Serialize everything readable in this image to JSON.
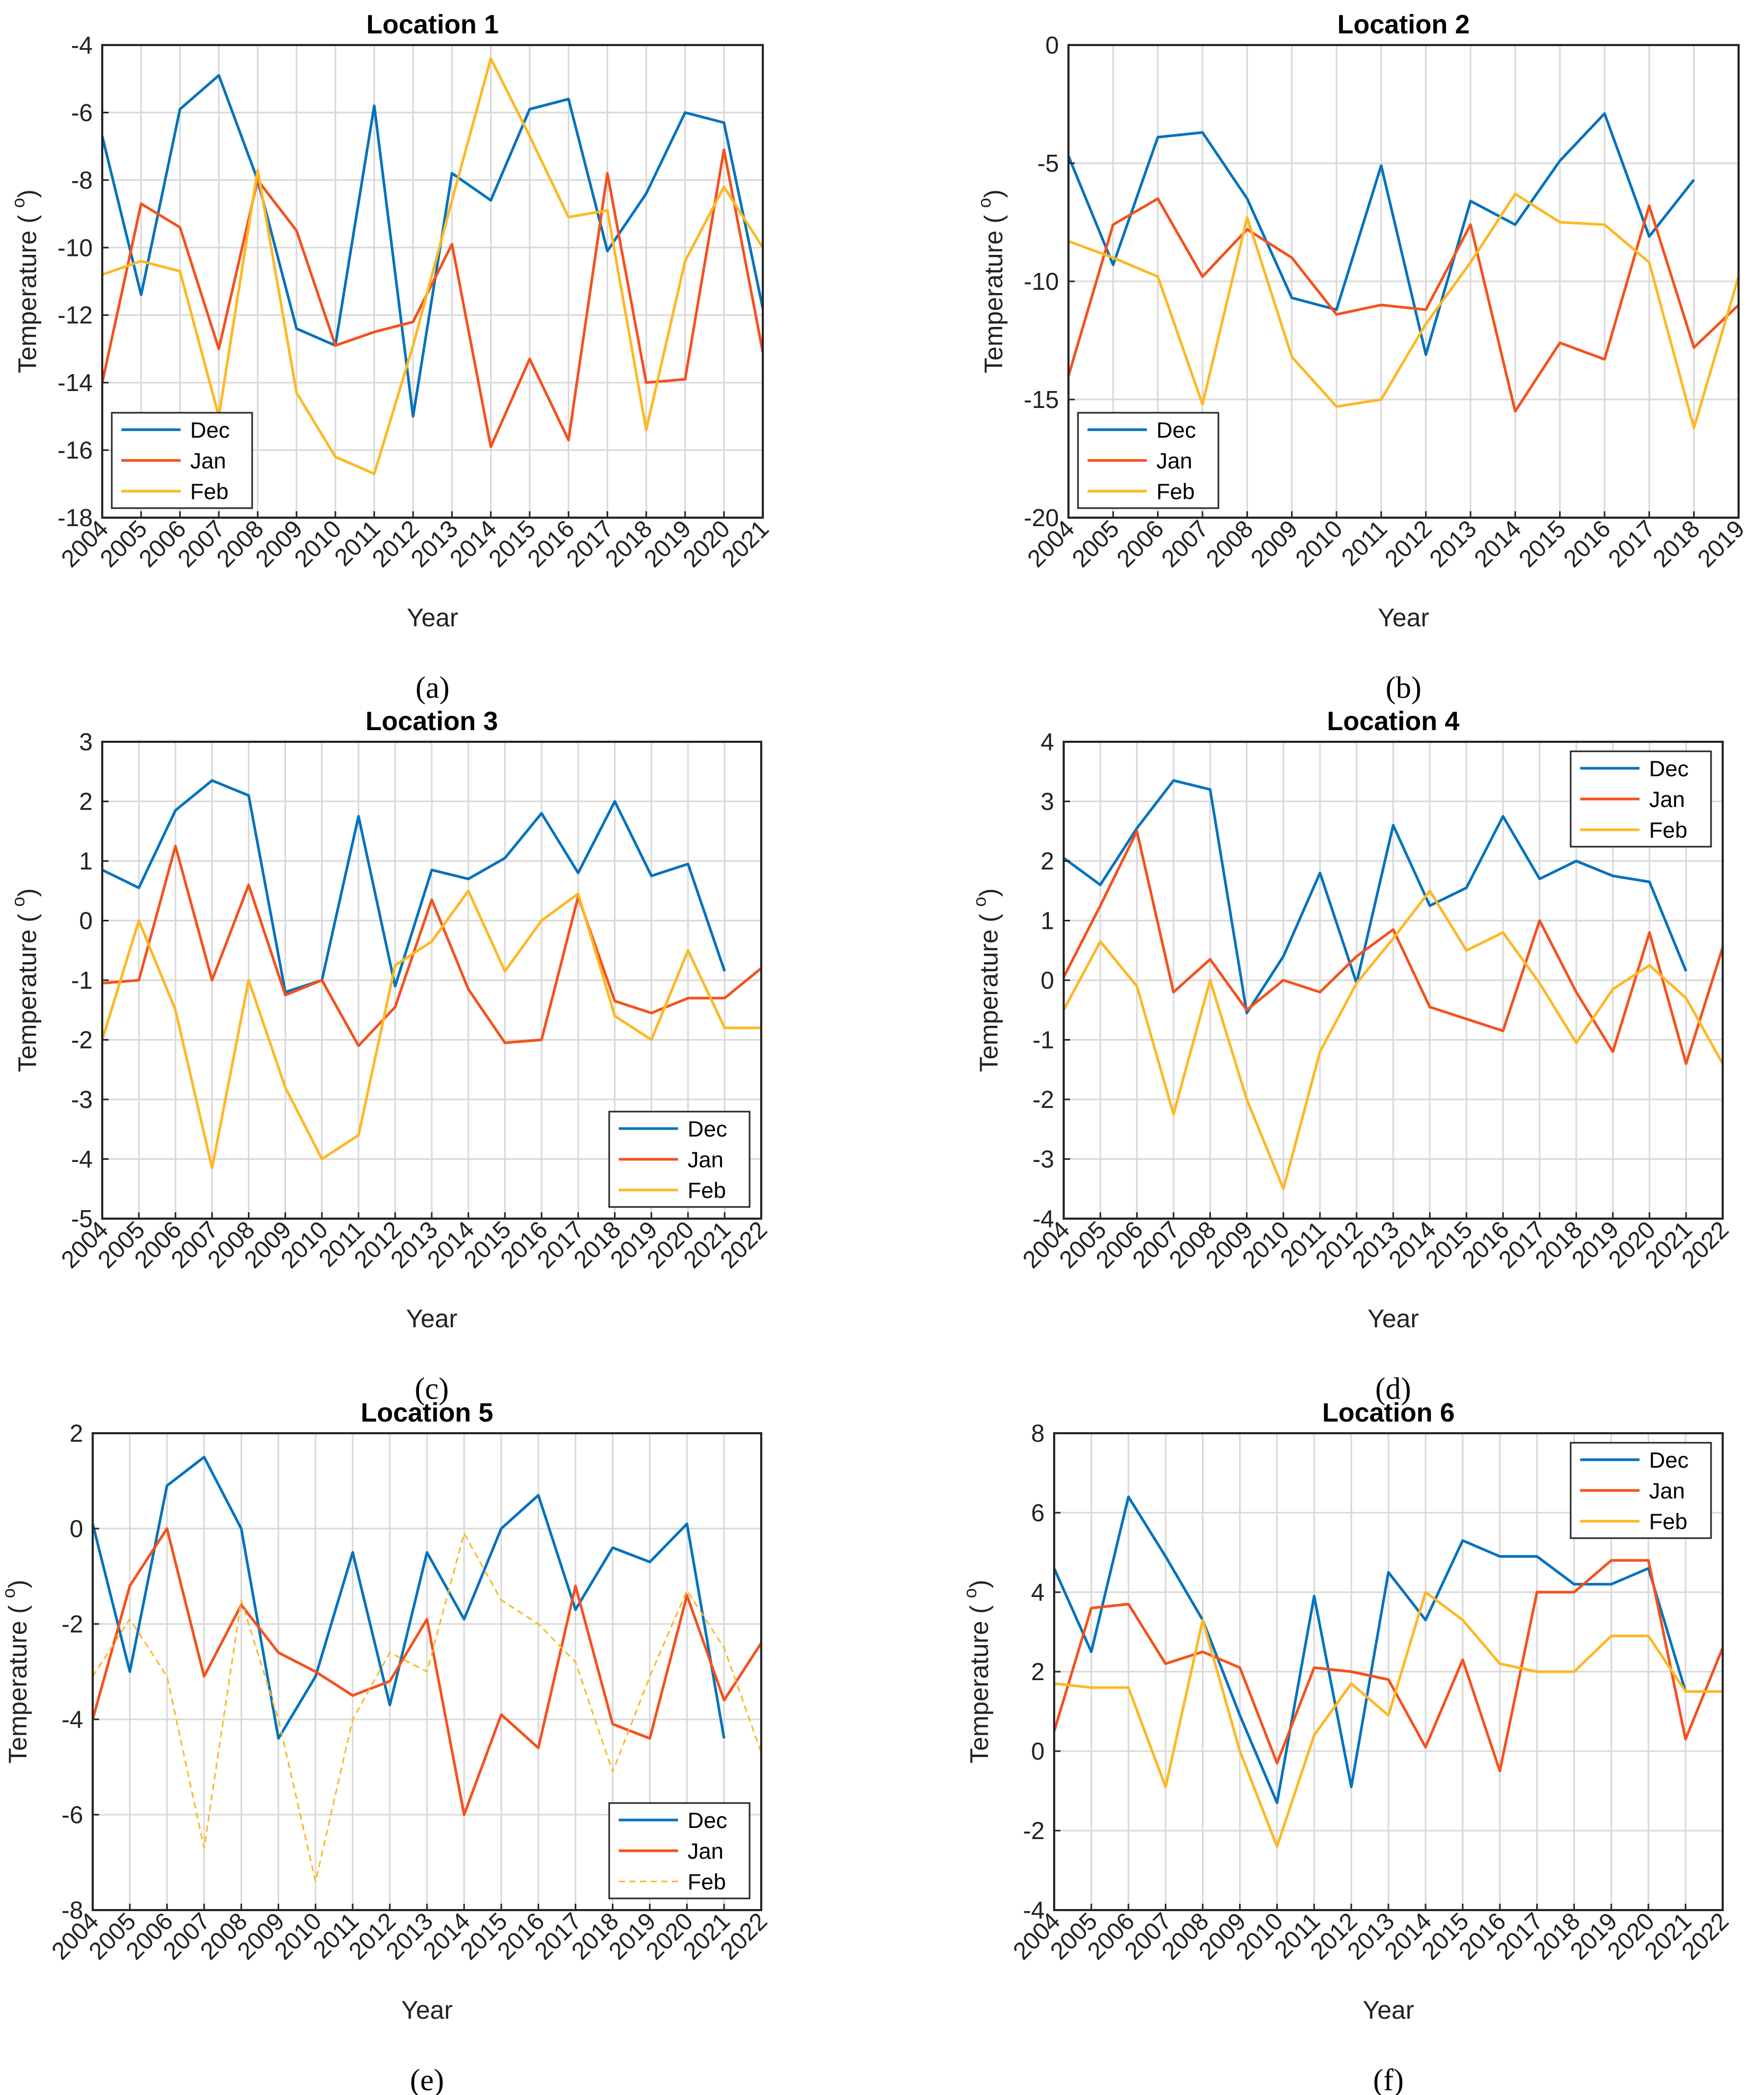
{
  "chart_data": [
    {
      "type": "line",
      "title": "Location 1",
      "caption": "(a)",
      "xlabel": "Year",
      "ylabel": "Temperature ( ",
      "ylabel_sup": "o",
      "ylabel_close": ")",
      "ylim": [
        -18,
        -4
      ],
      "yticks": [
        -18,
        -16,
        -14,
        -12,
        -10,
        -8,
        -6,
        -4
      ],
      "x": [
        2004,
        2005,
        2006,
        2007,
        2008,
        2009,
        2010,
        2011,
        2012,
        2013,
        2014,
        2015,
        2016,
        2017,
        2018,
        2019,
        2020,
        2021
      ],
      "grid": true,
      "legend_position": "bottom-left",
      "series": [
        {
          "name": "Dec",
          "color": "#0072BD",
          "dashed": false,
          "values": [
            -6.7,
            -11.4,
            -5.9,
            -4.9,
            -8.0,
            -12.4,
            -12.9,
            -5.8,
            -15.0,
            -7.8,
            -8.6,
            -5.9,
            -5.6,
            -10.1,
            -8.4,
            -6.0,
            -6.3,
            -11.8
          ]
        },
        {
          "name": "Jan",
          "color": "#F4511E",
          "dashed": false,
          "values": [
            -14.0,
            -8.7,
            -9.4,
            -13.0,
            -8.0,
            -9.5,
            -12.9,
            -12.5,
            -12.2,
            -9.9,
            -15.9,
            -13.3,
            -15.7,
            -7.8,
            -14.0,
            -13.9,
            -7.1,
            -13.1
          ]
        },
        {
          "name": "Feb",
          "color": "#FDB825",
          "dashed": false,
          "values": [
            -10.8,
            -10.4,
            -10.7,
            -15.0,
            -7.7,
            -14.3,
            -16.2,
            -16.7,
            -12.9,
            -8.6,
            -4.4,
            -6.7,
            -9.1,
            -8.9,
            -15.4,
            -10.4,
            -8.2,
            -10.0
          ]
        }
      ]
    },
    {
      "type": "line",
      "title": "Location 2",
      "caption": "(b)",
      "xlabel": "Year",
      "ylabel": "Temperature ( ",
      "ylabel_sup": "o",
      "ylabel_close": ")",
      "ylim": [
        -20,
        0
      ],
      "yticks": [
        -20,
        -15,
        -10,
        -5,
        0
      ],
      "x": [
        2004,
        2005,
        2006,
        2007,
        2008,
        2009,
        2010,
        2011,
        2012,
        2013,
        2014,
        2015,
        2016,
        2017,
        2018,
        2019
      ],
      "grid": true,
      "legend_position": "bottom-left",
      "series": [
        {
          "name": "Dec",
          "color": "#0072BD",
          "dashed": false,
          "values": [
            -4.7,
            -9.3,
            -3.9,
            -3.7,
            -6.5,
            -10.7,
            -11.2,
            -5.1,
            -13.1,
            -6.6,
            -7.6,
            -4.9,
            -2.9,
            -8.1,
            -5.7,
            null
          ]
        },
        {
          "name": "Jan",
          "color": "#F4511E",
          "dashed": false,
          "values": [
            -14.0,
            -7.6,
            -6.5,
            -9.8,
            -7.8,
            -9.0,
            -11.4,
            -11.0,
            -11.2,
            -7.6,
            -15.5,
            -12.6,
            -13.3,
            -6.8,
            -12.8,
            -11.0
          ]
        },
        {
          "name": "Feb",
          "color": "#FDB825",
          "dashed": false,
          "values": [
            -8.3,
            -9.0,
            -9.8,
            -15.2,
            -7.3,
            -13.2,
            -15.3,
            -15.0,
            -11.8,
            -9.2,
            -6.3,
            -7.5,
            -7.6,
            -9.2,
            -16.2,
            -9.8
          ]
        }
      ]
    },
    {
      "type": "line",
      "title": "Location 3",
      "caption": "(c)",
      "xlabel": "Year",
      "ylabel": "Temperature ( ",
      "ylabel_sup": "o",
      "ylabel_close": ")",
      "ylim": [
        -5,
        3
      ],
      "yticks": [
        -5,
        -4,
        -3,
        -2,
        -1,
        0,
        1,
        2,
        3
      ],
      "x": [
        2004,
        2005,
        2006,
        2007,
        2008,
        2009,
        2010,
        2011,
        2012,
        2013,
        2014,
        2015,
        2016,
        2017,
        2018,
        2019,
        2020,
        2021,
        2022
      ],
      "grid": true,
      "legend_position": "bottom-right",
      "series": [
        {
          "name": "Dec",
          "color": "#0072BD",
          "dashed": false,
          "values": [
            0.85,
            0.55,
            1.85,
            2.35,
            2.1,
            -1.2,
            -1.0,
            1.75,
            -1.1,
            0.85,
            0.7,
            1.05,
            1.8,
            0.8,
            2.0,
            0.75,
            0.95,
            -0.85,
            null
          ]
        },
        {
          "name": "Jan",
          "color": "#F4511E",
          "dashed": false,
          "values": [
            -1.05,
            -1.0,
            1.25,
            -1.0,
            0.6,
            -1.25,
            -1.0,
            -2.1,
            -1.45,
            0.35,
            -1.15,
            -2.05,
            -2.0,
            0.4,
            -1.35,
            -1.55,
            -1.3,
            -1.3,
            -0.8
          ]
        },
        {
          "name": "Feb",
          "color": "#FDB825",
          "dashed": false,
          "values": [
            -2.0,
            0.0,
            -1.5,
            -4.15,
            -1.0,
            -2.8,
            -4.0,
            -3.6,
            -0.75,
            -0.35,
            0.5,
            -0.85,
            0.0,
            0.45,
            -1.6,
            -2.0,
            -0.5,
            -1.8,
            -1.8
          ]
        }
      ]
    },
    {
      "type": "line",
      "title": "Location 4",
      "caption": "(d)",
      "xlabel": "Year",
      "ylabel": "Temperature ( ",
      "ylabel_sup": "o",
      "ylabel_close": ")",
      "ylim": [
        -4,
        4
      ],
      "yticks": [
        -4,
        -3,
        -2,
        -1,
        0,
        1,
        2,
        3,
        4
      ],
      "x": [
        2004,
        2005,
        2006,
        2007,
        2008,
        2009,
        2010,
        2011,
        2012,
        2013,
        2014,
        2015,
        2016,
        2017,
        2018,
        2019,
        2020,
        2021,
        2022
      ],
      "grid": true,
      "legend_position": "top-right",
      "series": [
        {
          "name": "Dec",
          "color": "#0072BD",
          "dashed": false,
          "values": [
            2.05,
            1.6,
            2.55,
            3.35,
            3.2,
            -0.55,
            0.4,
            1.8,
            -0.05,
            2.6,
            1.25,
            1.55,
            2.75,
            1.7,
            2.0,
            1.75,
            1.65,
            0.15,
            null
          ]
        },
        {
          "name": "Jan",
          "color": "#F4511E",
          "dashed": false,
          "values": [
            0.05,
            1.25,
            2.5,
            -0.2,
            0.35,
            -0.5,
            0.0,
            -0.2,
            0.4,
            0.85,
            -0.45,
            -0.65,
            -0.85,
            1.0,
            -0.2,
            -1.2,
            0.8,
            -1.4,
            0.55
          ]
        },
        {
          "name": "Feb",
          "color": "#FDB825",
          "dashed": false,
          "values": [
            -0.5,
            0.65,
            -0.1,
            -2.25,
            0.0,
            -2.0,
            -3.5,
            -1.2,
            -0.05,
            0.7,
            1.5,
            0.5,
            0.8,
            -0.05,
            -1.05,
            -0.15,
            0.25,
            -0.3,
            -1.4
          ]
        }
      ]
    },
    {
      "type": "line",
      "title": "Location 5",
      "caption": "(e)",
      "xlabel": "Year",
      "ylabel": "Temperature ( ",
      "ylabel_sup": "o",
      "ylabel_close": ")",
      "ylim": [
        -8,
        2
      ],
      "yticks": [
        -8,
        -6,
        -4,
        -2,
        0,
        2
      ],
      "x": [
        2004,
        2005,
        2006,
        2007,
        2008,
        2009,
        2010,
        2011,
        2012,
        2013,
        2014,
        2015,
        2016,
        2017,
        2018,
        2019,
        2020,
        2021,
        2022
      ],
      "grid": true,
      "legend_position": "bottom-right",
      "series": [
        {
          "name": "Dec",
          "color": "#0072BD",
          "dashed": false,
          "values": [
            0.1,
            -3.0,
            0.9,
            1.5,
            0.0,
            -4.4,
            -3.1,
            -0.5,
            -3.7,
            -0.5,
            -1.9,
            0.0,
            0.7,
            -1.7,
            -0.4,
            -0.7,
            0.1,
            -4.4,
            null
          ]
        },
        {
          "name": "Jan",
          "color": "#F4511E",
          "dashed": false,
          "values": [
            -4.0,
            -1.2,
            0.0,
            -3.1,
            -1.6,
            -2.6,
            -3.0,
            -3.5,
            -3.2,
            -1.9,
            -6.0,
            -3.9,
            -4.6,
            -1.2,
            -4.1,
            -4.4,
            -1.4,
            -3.6,
            -2.4
          ]
        },
        {
          "name": "Feb",
          "color": "#FDB825",
          "dashed": true,
          "values": [
            -3.1,
            -1.9,
            -3.1,
            -6.7,
            -1.5,
            -4.0,
            -7.4,
            -4.0,
            -2.6,
            -3.0,
            -0.1,
            -1.5,
            -2.0,
            -2.8,
            -5.1,
            -3.1,
            -1.3,
            -2.5,
            -4.7
          ]
        }
      ]
    },
    {
      "type": "line",
      "title": "Location 6",
      "caption": "(f)",
      "xlabel": "Year",
      "ylabel": "Temperature ( ",
      "ylabel_sup": "o",
      "ylabel_close": ")",
      "ylim": [
        -4,
        8
      ],
      "yticks": [
        -4,
        -2,
        0,
        2,
        4,
        6,
        8
      ],
      "x": [
        2004,
        2005,
        2006,
        2007,
        2008,
        2009,
        2010,
        2011,
        2012,
        2013,
        2014,
        2015,
        2016,
        2017,
        2018,
        2019,
        2020,
        2021,
        2022
      ],
      "grid": true,
      "legend_position": "top-right",
      "series": [
        {
          "name": "Dec",
          "color": "#0072BD",
          "dashed": false,
          "values": [
            4.6,
            2.5,
            6.4,
            4.9,
            3.3,
            0.9,
            -1.3,
            3.9,
            -0.9,
            4.5,
            3.3,
            5.3,
            4.9,
            4.9,
            4.2,
            4.2,
            4.6,
            1.5,
            null
          ]
        },
        {
          "name": "Jan",
          "color": "#F4511E",
          "dashed": false,
          "values": [
            0.5,
            3.6,
            3.7,
            2.2,
            2.5,
            2.1,
            -0.3,
            2.1,
            2.0,
            1.8,
            0.1,
            2.3,
            -0.5,
            4.0,
            4.0,
            4.8,
            4.8,
            0.3,
            2.6
          ]
        },
        {
          "name": "Feb",
          "color": "#FDB825",
          "dashed": false,
          "values": [
            1.7,
            1.6,
            1.6,
            -0.9,
            3.3,
            0.0,
            -2.4,
            0.4,
            1.7,
            0.9,
            4.0,
            3.3,
            2.2,
            2.0,
            2.0,
            2.9,
            2.9,
            1.5,
            1.5
          ]
        }
      ]
    }
  ]
}
